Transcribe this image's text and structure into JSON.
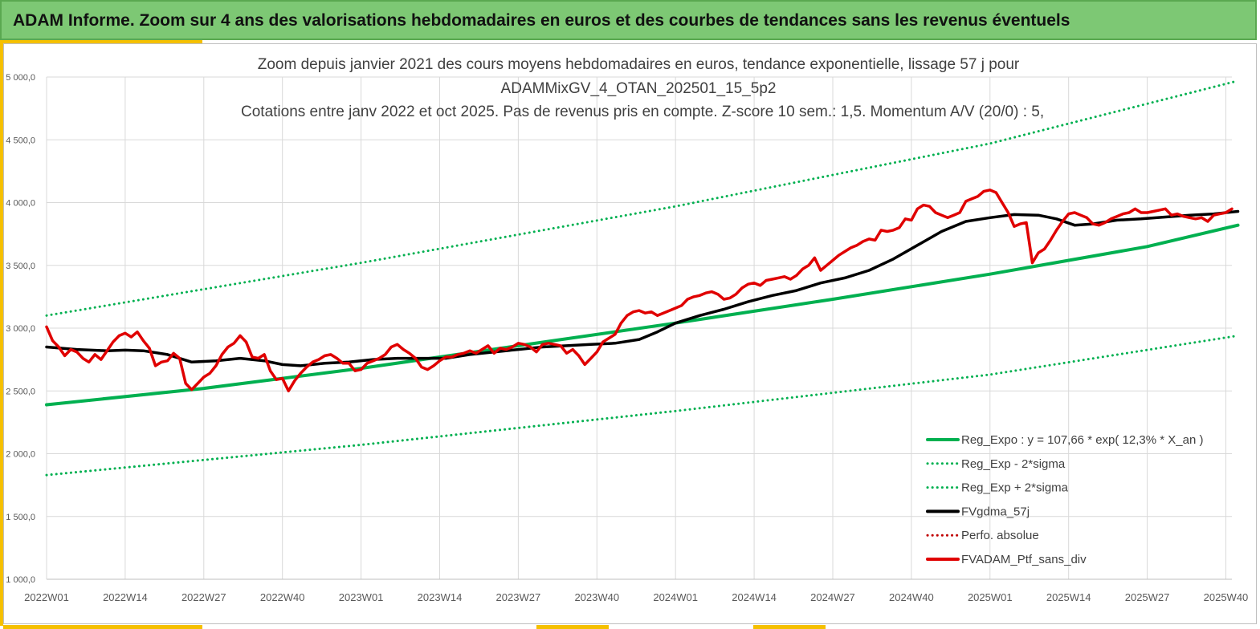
{
  "banner": {
    "title": "ADAM Informe. Zoom sur 4 ans des valorisations hebdomadaires en euros et des courbes de tendances sans les revenus éventuels"
  },
  "colors": {
    "banner_bg": "#7dc874",
    "accent": "#f5c000",
    "reg_expo": "#00b050",
    "sigma": "#00b050",
    "gdma": "#000000",
    "perfo": "#c00000",
    "ptf": "#e00000",
    "grid": "#d9d9d9"
  },
  "chart_data": {
    "type": "line",
    "title_lines": [
      "Zoom depuis janvier 2021 des cours moyens hebdomadaires  en euros, tendance exponentielle, lissage 57 j pour",
      "ADAMMixGV_4_OTAN_202501_15_5p2",
      "Cotations  entre janv 2022 et oct 2025. Pas de revenus pris en compte. Z-score 10 sem.: 1,5. Momentum A/V (20/0) : 5,"
    ],
    "ylim": [
      1000,
      5000
    ],
    "ytick_labels": [
      "1 000,0",
      "1 500,0",
      "2 000,0",
      "2 500,0",
      "3 000,0",
      "3 500,0",
      "4 000,0",
      "4 500,0",
      "5 000,0"
    ],
    "ytick_values": [
      1000,
      1500,
      2000,
      2500,
      3000,
      3500,
      4000,
      4500,
      5000
    ],
    "x_week_count": 197,
    "xtick_labels": [
      "2022W01",
      "2022W14",
      "2022W27",
      "2022W40",
      "2023W01",
      "2023W14",
      "2023W27",
      "2023W40",
      "2024W01",
      "2024W14",
      "2024W27",
      "2024W40",
      "2025W01",
      "2025W14",
      "2025W27",
      "2025W40"
    ],
    "xtick_weeks": [
      0,
      13,
      26,
      39,
      52,
      65,
      78,
      91,
      104,
      117,
      130,
      143,
      156,
      169,
      182,
      195
    ],
    "grid": true,
    "legend_position": "bottom-right",
    "series": [
      {
        "name": "Reg_Expo : y = 107,66 * exp( 12,3% *  X_an )",
        "style": "solid",
        "width": 4,
        "color": "#00b050",
        "points": [
          [
            0,
            2390
          ],
          [
            26,
            2520
          ],
          [
            52,
            2680
          ],
          [
            78,
            2860
          ],
          [
            104,
            3040
          ],
          [
            130,
            3230
          ],
          [
            156,
            3430
          ],
          [
            182,
            3650
          ],
          [
            197,
            3820
          ]
        ]
      },
      {
        "name": "Reg_Exp - 2*sigma",
        "style": "dotted",
        "width": 3,
        "color": "#00b050",
        "points": [
          [
            0,
            1830
          ],
          [
            52,
            2070
          ],
          [
            104,
            2340
          ],
          [
            156,
            2630
          ],
          [
            197,
            2940
          ]
        ]
      },
      {
        "name": "Reg_Exp + 2*sigma",
        "style": "dotted",
        "width": 3,
        "color": "#00b050",
        "points": [
          [
            0,
            3100
          ],
          [
            52,
            3520
          ],
          [
            104,
            3970
          ],
          [
            156,
            4470
          ],
          [
            197,
            4970
          ]
        ]
      },
      {
        "name": "FVgdma_57j",
        "style": "solid",
        "width": 3.5,
        "color": "#000000",
        "points": [
          [
            0,
            2850
          ],
          [
            5,
            2830
          ],
          [
            10,
            2820
          ],
          [
            13,
            2825
          ],
          [
            16,
            2820
          ],
          [
            20,
            2790
          ],
          [
            24,
            2730
          ],
          [
            28,
            2740
          ],
          [
            32,
            2760
          ],
          [
            36,
            2740
          ],
          [
            39,
            2710
          ],
          [
            42,
            2700
          ],
          [
            46,
            2720
          ],
          [
            50,
            2730
          ],
          [
            54,
            2750
          ],
          [
            58,
            2760
          ],
          [
            62,
            2760
          ],
          [
            66,
            2760
          ],
          [
            70,
            2790
          ],
          [
            74,
            2810
          ],
          [
            78,
            2830
          ],
          [
            82,
            2850
          ],
          [
            86,
            2860
          ],
          [
            90,
            2870
          ],
          [
            94,
            2880
          ],
          [
            98,
            2910
          ],
          [
            101,
            2970
          ],
          [
            104,
            3040
          ],
          [
            108,
            3100
          ],
          [
            112,
            3150
          ],
          [
            116,
            3210
          ],
          [
            120,
            3260
          ],
          [
            124,
            3300
          ],
          [
            128,
            3360
          ],
          [
            132,
            3400
          ],
          [
            136,
            3460
          ],
          [
            140,
            3550
          ],
          [
            144,
            3660
          ],
          [
            148,
            3770
          ],
          [
            152,
            3850
          ],
          [
            156,
            3880
          ],
          [
            160,
            3905
          ],
          [
            164,
            3900
          ],
          [
            167,
            3870
          ],
          [
            170,
            3820
          ],
          [
            173,
            3830
          ],
          [
            177,
            3860
          ],
          [
            181,
            3870
          ],
          [
            185,
            3885
          ],
          [
            189,
            3900
          ],
          [
            193,
            3910
          ],
          [
            197,
            3930
          ]
        ]
      },
      {
        "name": "Perfo. absolue",
        "style": "dotted",
        "width": 3,
        "color": "#c00000",
        "points": []
      },
      {
        "name": "FVADAM_Ptf_sans_div",
        "style": "solid",
        "width": 3.5,
        "color": "#e00000",
        "points": [
          [
            0,
            3010
          ],
          [
            1,
            2900
          ],
          [
            2,
            2850
          ],
          [
            3,
            2780
          ],
          [
            4,
            2830
          ],
          [
            5,
            2810
          ],
          [
            6,
            2760
          ],
          [
            7,
            2730
          ],
          [
            8,
            2790
          ],
          [
            9,
            2750
          ],
          [
            10,
            2820
          ],
          [
            11,
            2890
          ],
          [
            12,
            2940
          ],
          [
            13,
            2960
          ],
          [
            14,
            2930
          ],
          [
            15,
            2970
          ],
          [
            16,
            2900
          ],
          [
            17,
            2840
          ],
          [
            18,
            2700
          ],
          [
            19,
            2730
          ],
          [
            20,
            2740
          ],
          [
            21,
            2800
          ],
          [
            22,
            2760
          ],
          [
            23,
            2560
          ],
          [
            24,
            2510
          ],
          [
            25,
            2560
          ],
          [
            26,
            2610
          ],
          [
            27,
            2640
          ],
          [
            28,
            2700
          ],
          [
            29,
            2790
          ],
          [
            30,
            2850
          ],
          [
            31,
            2880
          ],
          [
            32,
            2940
          ],
          [
            33,
            2890
          ],
          [
            34,
            2770
          ],
          [
            35,
            2760
          ],
          [
            36,
            2790
          ],
          [
            37,
            2660
          ],
          [
            38,
            2590
          ],
          [
            39,
            2600
          ],
          [
            40,
            2500
          ],
          [
            41,
            2580
          ],
          [
            42,
            2640
          ],
          [
            43,
            2690
          ],
          [
            44,
            2730
          ],
          [
            45,
            2750
          ],
          [
            46,
            2780
          ],
          [
            47,
            2790
          ],
          [
            48,
            2760
          ],
          [
            49,
            2720
          ],
          [
            50,
            2720
          ],
          [
            51,
            2660
          ],
          [
            52,
            2670
          ],
          [
            53,
            2720
          ],
          [
            54,
            2740
          ],
          [
            55,
            2760
          ],
          [
            56,
            2790
          ],
          [
            57,
            2850
          ],
          [
            58,
            2870
          ],
          [
            59,
            2830
          ],
          [
            60,
            2800
          ],
          [
            61,
            2760
          ],
          [
            62,
            2690
          ],
          [
            63,
            2670
          ],
          [
            64,
            2700
          ],
          [
            65,
            2740
          ],
          [
            66,
            2770
          ],
          [
            67,
            2770
          ],
          [
            68,
            2790
          ],
          [
            69,
            2800
          ],
          [
            70,
            2820
          ],
          [
            71,
            2800
          ],
          [
            72,
            2830
          ],
          [
            73,
            2860
          ],
          [
            74,
            2800
          ],
          [
            75,
            2840
          ],
          [
            76,
            2830
          ],
          [
            77,
            2850
          ],
          [
            78,
            2880
          ],
          [
            79,
            2870
          ],
          [
            80,
            2850
          ],
          [
            81,
            2810
          ],
          [
            82,
            2870
          ],
          [
            83,
            2880
          ],
          [
            84,
            2870
          ],
          [
            85,
            2860
          ],
          [
            86,
            2800
          ],
          [
            87,
            2830
          ],
          [
            88,
            2780
          ],
          [
            89,
            2710
          ],
          [
            90,
            2760
          ],
          [
            91,
            2810
          ],
          [
            92,
            2890
          ],
          [
            93,
            2920
          ],
          [
            94,
            2950
          ],
          [
            95,
            3040
          ],
          [
            96,
            3100
          ],
          [
            97,
            3130
          ],
          [
            98,
            3140
          ],
          [
            99,
            3120
          ],
          [
            100,
            3130
          ],
          [
            101,
            3100
          ],
          [
            102,
            3120
          ],
          [
            103,
            3140
          ],
          [
            104,
            3160
          ],
          [
            105,
            3180
          ],
          [
            106,
            3230
          ],
          [
            107,
            3250
          ],
          [
            108,
            3260
          ],
          [
            109,
            3280
          ],
          [
            110,
            3290
          ],
          [
            111,
            3270
          ],
          [
            112,
            3230
          ],
          [
            113,
            3240
          ],
          [
            114,
            3270
          ],
          [
            115,
            3320
          ],
          [
            116,
            3350
          ],
          [
            117,
            3360
          ],
          [
            118,
            3340
          ],
          [
            119,
            3380
          ],
          [
            120,
            3390
          ],
          [
            121,
            3400
          ],
          [
            122,
            3410
          ],
          [
            123,
            3390
          ],
          [
            124,
            3420
          ],
          [
            125,
            3470
          ],
          [
            126,
            3500
          ],
          [
            127,
            3560
          ],
          [
            128,
            3460
          ],
          [
            129,
            3500
          ],
          [
            130,
            3540
          ],
          [
            131,
            3580
          ],
          [
            132,
            3610
          ],
          [
            133,
            3640
          ],
          [
            134,
            3660
          ],
          [
            135,
            3690
          ],
          [
            136,
            3710
          ],
          [
            137,
            3700
          ],
          [
            138,
            3780
          ],
          [
            139,
            3770
          ],
          [
            140,
            3780
          ],
          [
            141,
            3800
          ],
          [
            142,
            3870
          ],
          [
            143,
            3860
          ],
          [
            144,
            3950
          ],
          [
            145,
            3980
          ],
          [
            146,
            3970
          ],
          [
            147,
            3920
          ],
          [
            148,
            3900
          ],
          [
            149,
            3880
          ],
          [
            150,
            3900
          ],
          [
            151,
            3920
          ],
          [
            152,
            4010
          ],
          [
            153,
            4030
          ],
          [
            154,
            4050
          ],
          [
            155,
            4090
          ],
          [
            156,
            4100
          ],
          [
            157,
            4080
          ],
          [
            158,
            4000
          ],
          [
            159,
            3920
          ],
          [
            160,
            3810
          ],
          [
            161,
            3830
          ],
          [
            162,
            3840
          ],
          [
            163,
            3520
          ],
          [
            164,
            3600
          ],
          [
            165,
            3630
          ],
          [
            166,
            3700
          ],
          [
            167,
            3780
          ],
          [
            168,
            3850
          ],
          [
            169,
            3910
          ],
          [
            170,
            3920
          ],
          [
            171,
            3900
          ],
          [
            172,
            3880
          ],
          [
            173,
            3830
          ],
          [
            174,
            3820
          ],
          [
            175,
            3840
          ],
          [
            176,
            3870
          ],
          [
            177,
            3890
          ],
          [
            178,
            3910
          ],
          [
            179,
            3920
          ],
          [
            180,
            3950
          ],
          [
            181,
            3920
          ],
          [
            182,
            3920
          ],
          [
            183,
            3930
          ],
          [
            184,
            3940
          ],
          [
            185,
            3950
          ],
          [
            186,
            3900
          ],
          [
            187,
            3910
          ],
          [
            188,
            3890
          ],
          [
            189,
            3880
          ],
          [
            190,
            3870
          ],
          [
            191,
            3880
          ],
          [
            192,
            3850
          ],
          [
            193,
            3900
          ],
          [
            194,
            3910
          ],
          [
            195,
            3920
          ],
          [
            196,
            3950
          ]
        ]
      }
    ]
  }
}
